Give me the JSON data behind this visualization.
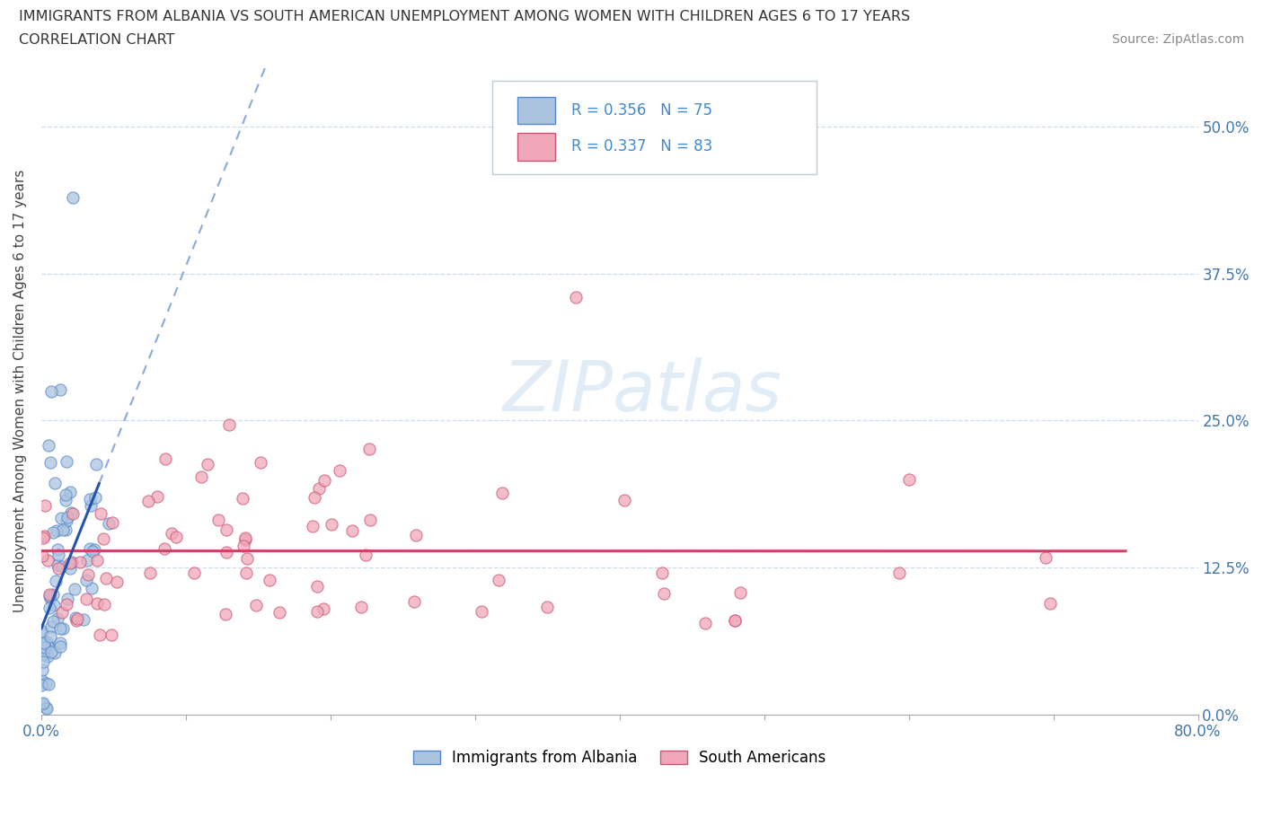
{
  "title_line1": "IMMIGRANTS FROM ALBANIA VS SOUTH AMERICAN UNEMPLOYMENT AMONG WOMEN WITH CHILDREN AGES 6 TO 17 YEARS",
  "title_line2": "CORRELATION CHART",
  "source": "Source: ZipAtlas.com",
  "ylabel": "Unemployment Among Women with Children Ages 6 to 17 years",
  "xlim": [
    0.0,
    0.8
  ],
  "ylim": [
    0.0,
    0.55
  ],
  "xticks": [
    0.0,
    0.1,
    0.2,
    0.3,
    0.4,
    0.5,
    0.6,
    0.7,
    0.8
  ],
  "yticks": [
    0.0,
    0.125,
    0.25,
    0.375,
    0.5
  ],
  "albania_color": "#aac4e0",
  "albania_edge_color": "#5588cc",
  "south_american_color": "#f0a8b8",
  "south_american_edge_color": "#cc5577",
  "albania_trend_color": "#2255aa",
  "albania_trend_dash_color": "#88aadd",
  "sa_trend_color": "#cc4466",
  "albania_R": 0.356,
  "albania_N": 75,
  "south_american_R": 0.337,
  "south_american_N": 83,
  "watermark": "ZIPatlas",
  "legend_color": "#4488cc",
  "grid_color": "#c8d8e8",
  "background_color": "#ffffff"
}
